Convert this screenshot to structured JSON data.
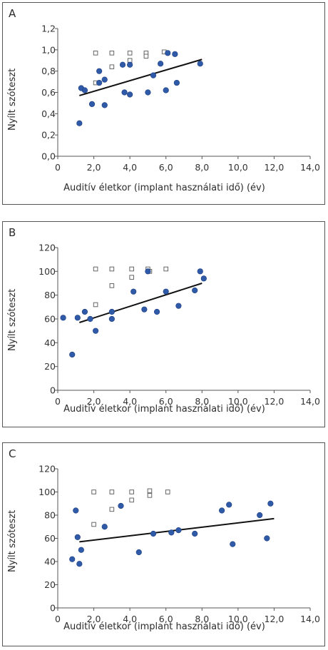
{
  "chart_data": [
    {
      "type": "scatter",
      "panel_label": "A",
      "xlabel": "Auditív életkor (implant használati idő) (év)",
      "ylabel": "Nyílt szóteszt",
      "xlim": [
        0,
        14
      ],
      "ylim": [
        0,
        1.2
      ],
      "x_ticks": [
        "0",
        "2,0",
        "4,0",
        "6,0",
        "8,0",
        "10,0",
        "12,0",
        "14,0"
      ],
      "y_ticks": [
        "0,0",
        "0,2",
        "0,4",
        "0,6",
        "0,8",
        "1,0",
        "1,2"
      ],
      "grid": false,
      "series": [
        {
          "marker": "filled-circle",
          "color": "#2f5aa8",
          "points": [
            [
              1.2,
              0.31
            ],
            [
              1.3,
              0.64
            ],
            [
              1.5,
              0.62
            ],
            [
              1.9,
              0.49
            ],
            [
              2.3,
              0.8
            ],
            [
              2.3,
              0.69
            ],
            [
              2.6,
              0.48
            ],
            [
              2.6,
              0.72
            ],
            [
              3.6,
              0.86
            ],
            [
              3.7,
              0.6
            ],
            [
              4.0,
              0.86
            ],
            [
              4.0,
              0.58
            ],
            [
              5.0,
              0.6
            ],
            [
              5.3,
              0.76
            ],
            [
              5.7,
              0.87
            ],
            [
              6.0,
              0.62
            ],
            [
              6.1,
              0.97
            ],
            [
              6.5,
              0.96
            ],
            [
              6.6,
              0.69
            ],
            [
              7.9,
              0.87
            ]
          ]
        },
        {
          "marker": "open-square",
          "color": "#666666",
          "points": [
            [
              2.1,
              0.97
            ],
            [
              2.1,
              0.69
            ],
            [
              3.0,
              0.97
            ],
            [
              3.0,
              0.84
            ],
            [
              4.0,
              0.97
            ],
            [
              4.0,
              0.9
            ],
            [
              4.9,
              0.97
            ],
            [
              4.9,
              0.94
            ],
            [
              5.9,
              0.98
            ]
          ]
        }
      ],
      "trendline": {
        "x": [
          1.2,
          8.0
        ],
        "y": [
          0.57,
          0.91
        ]
      }
    },
    {
      "type": "scatter",
      "panel_label": "B",
      "xlabel": "Auditív életkor (implant használati idő) (év)",
      "ylabel": "Nyílt szóteszt",
      "xlim": [
        0,
        14
      ],
      "ylim": [
        0,
        120
      ],
      "x_ticks": [
        "0",
        "2,0",
        "4,0",
        "6,0",
        "8,0",
        "10,0",
        "12,0",
        "14,0"
      ],
      "y_ticks": [
        "0",
        "20",
        "40",
        "60",
        "80",
        "100",
        "120"
      ],
      "grid": false,
      "series": [
        {
          "marker": "filled-circle",
          "color": "#2f5aa8",
          "points": [
            [
              0.3,
              61
            ],
            [
              0.8,
              30
            ],
            [
              1.1,
              61
            ],
            [
              1.5,
              66
            ],
            [
              1.8,
              60
            ],
            [
              2.1,
              50
            ],
            [
              3.0,
              66
            ],
            [
              3.0,
              60
            ],
            [
              4.2,
              83
            ],
            [
              4.8,
              68
            ],
            [
              5.0,
              100
            ],
            [
              5.5,
              66
            ],
            [
              6.0,
              83
            ],
            [
              6.7,
              71
            ],
            [
              7.6,
              84
            ],
            [
              7.9,
              100
            ],
            [
              8.1,
              94
            ]
          ]
        },
        {
          "marker": "open-square",
          "color": "#666666",
          "points": [
            [
              2.1,
              102
            ],
            [
              2.1,
              72
            ],
            [
              3.0,
              102
            ],
            [
              3.0,
              88
            ],
            [
              4.1,
              102
            ],
            [
              4.1,
              95
            ],
            [
              5.0,
              102
            ],
            [
              5.1,
              100
            ],
            [
              6.0,
              102
            ]
          ]
        }
      ],
      "trendline": {
        "x": [
          1.2,
          8.0
        ],
        "y": [
          57,
          90
        ]
      }
    },
    {
      "type": "scatter",
      "panel_label": "C",
      "xlabel": "Auditív életkor (implant használati idő) (év)",
      "ylabel": "Nyílt szóteszt",
      "xlim": [
        0,
        14
      ],
      "ylim": [
        0,
        120
      ],
      "x_ticks": [
        "0",
        "2,0",
        "4,0",
        "6,0",
        "8,0",
        "10,0",
        "12,0",
        "14,0"
      ],
      "y_ticks": [
        "0",
        "20",
        "40",
        "60",
        "80",
        "100",
        "120"
      ],
      "grid": false,
      "series": [
        {
          "marker": "filled-circle",
          "color": "#2f5aa8",
          "points": [
            [
              0.8,
              42
            ],
            [
              1.0,
              84
            ],
            [
              1.1,
              61
            ],
            [
              1.2,
              38
            ],
            [
              1.3,
              50
            ],
            [
              2.6,
              70
            ],
            [
              3.5,
              88
            ],
            [
              4.5,
              48
            ],
            [
              5.3,
              64
            ],
            [
              6.3,
              65
            ],
            [
              6.7,
              67
            ],
            [
              7.6,
              64
            ],
            [
              9.1,
              84
            ],
            [
              9.5,
              89
            ],
            [
              9.7,
              55
            ],
            [
              11.2,
              80
            ],
            [
              11.6,
              60
            ],
            [
              11.8,
              90
            ]
          ]
        },
        {
          "marker": "open-square",
          "color": "#666666",
          "points": [
            [
              2.0,
              100
            ],
            [
              2.0,
              72
            ],
            [
              3.0,
              100
            ],
            [
              3.0,
              85
            ],
            [
              4.1,
              100
            ],
            [
              4.1,
              93
            ],
            [
              5.1,
              101
            ],
            [
              5.1,
              97
            ],
            [
              6.1,
              100
            ]
          ]
        }
      ],
      "trendline": {
        "x": [
          1.2,
          12.0
        ],
        "y": [
          57,
          77
        ]
      }
    }
  ]
}
